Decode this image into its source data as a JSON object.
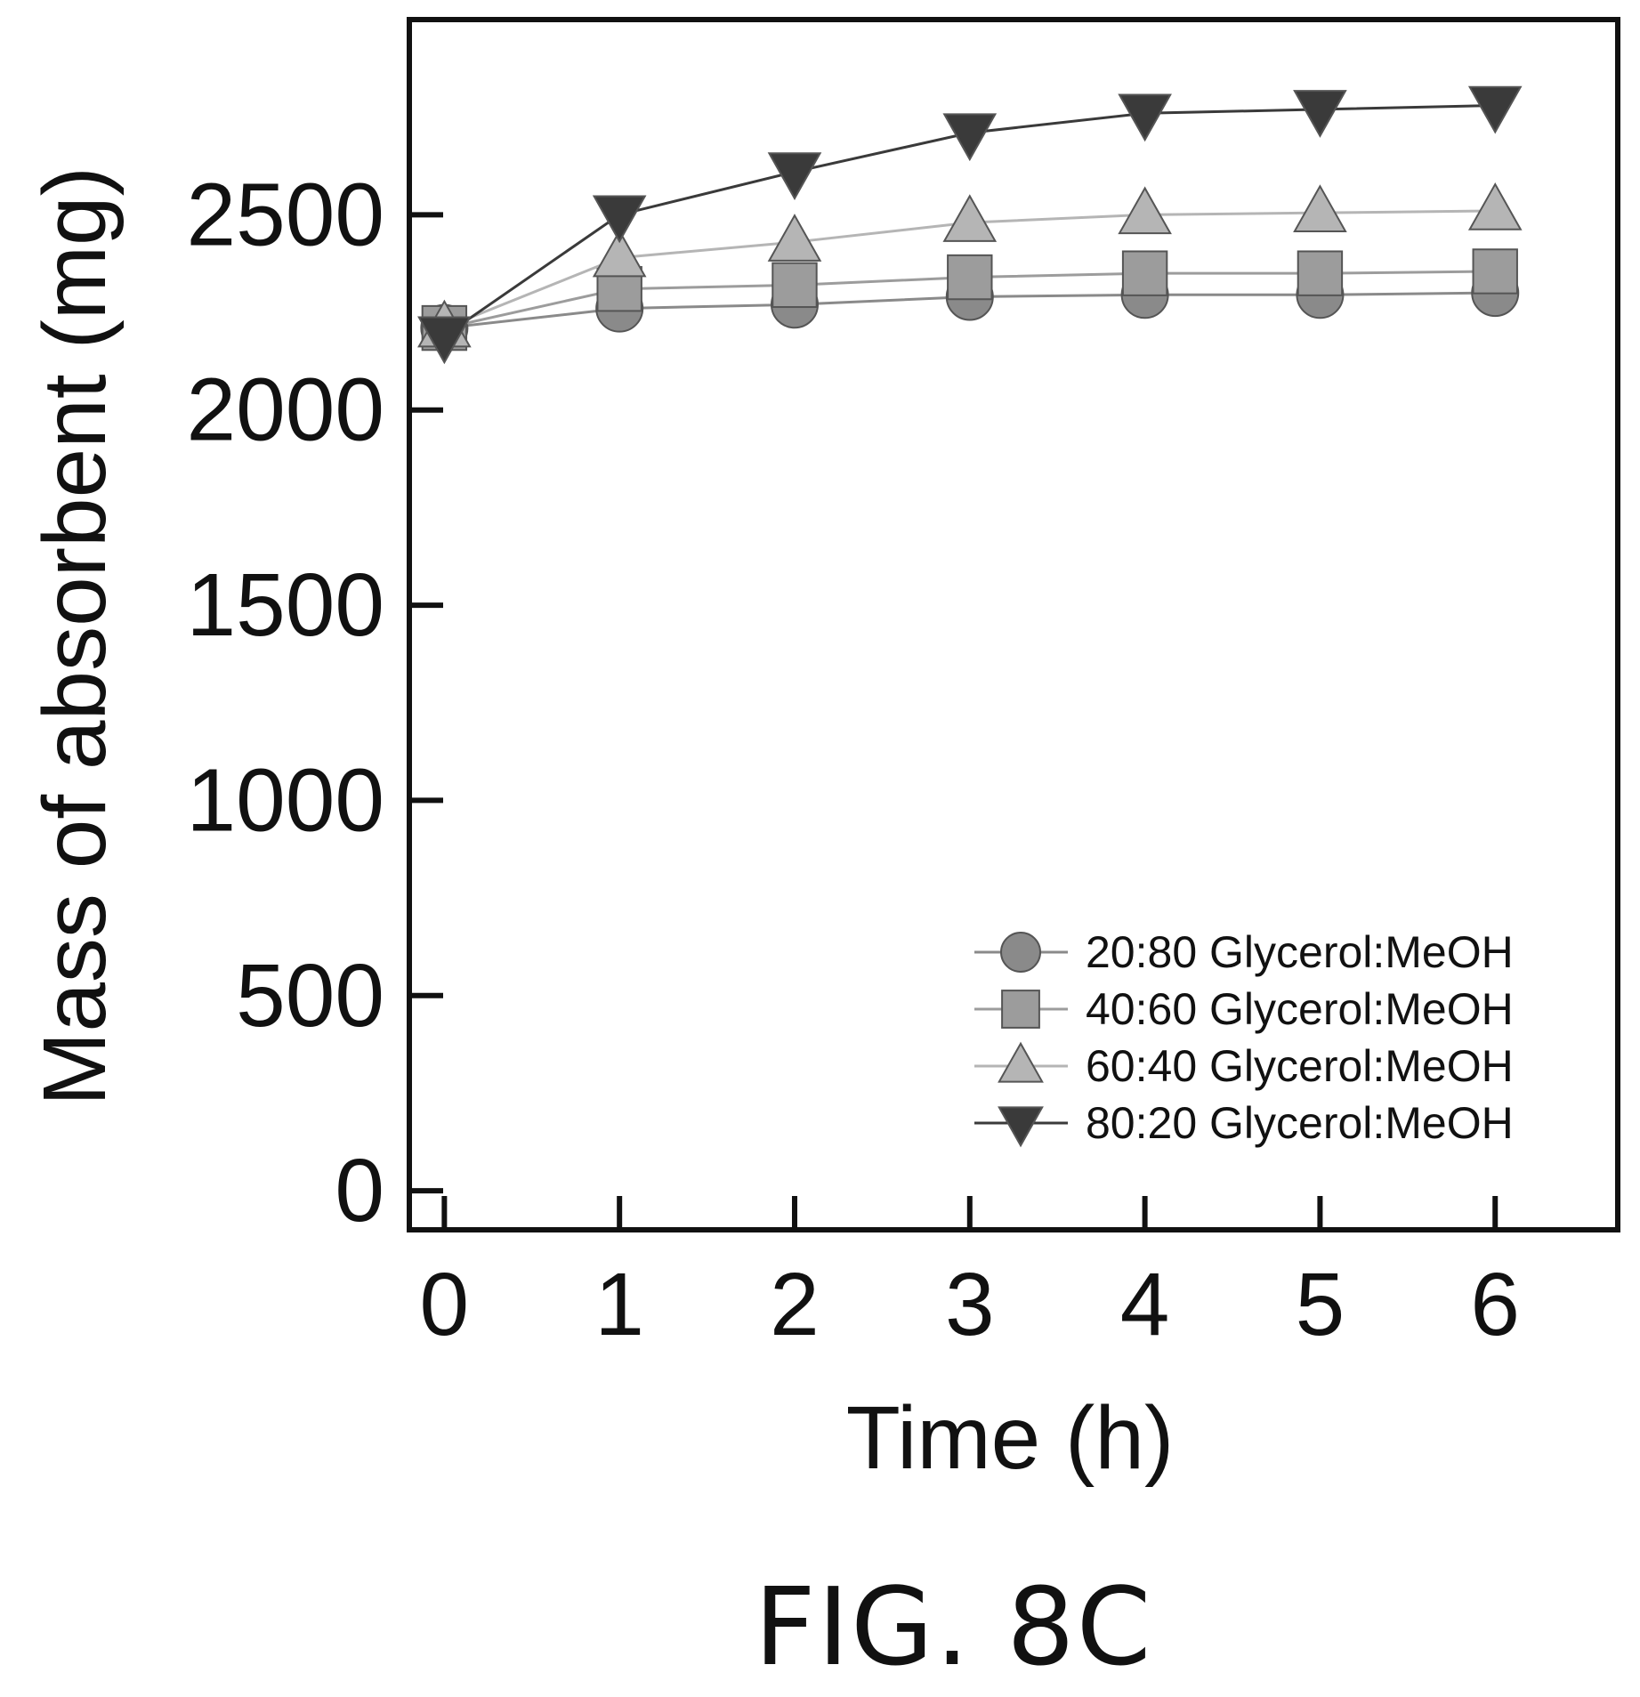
{
  "chart_data": {
    "type": "line",
    "title": "",
    "xlabel": "Time (h)",
    "ylabel": "Mass of absorbent (mg)",
    "x": [
      0,
      1,
      2,
      3,
      4,
      5,
      6
    ],
    "xticks": [
      "0",
      "1",
      "2",
      "3",
      "4",
      "5",
      "6"
    ],
    "yticks": [
      "0",
      "500",
      "1000",
      "1500",
      "2000",
      "2500"
    ],
    "xlim": [
      -0.2,
      6.7
    ],
    "ylim": [
      -100,
      3000
    ],
    "grid": false,
    "legend_position": "bottom-right",
    "series": [
      {
        "name": "20:80 Glycerol:MeOH",
        "marker": "circle",
        "color": "#8a8a8a",
        "values": [
          2210,
          2260,
          2270,
          2290,
          2295,
          2295,
          2300
        ]
      },
      {
        "name": "40:60 Glycerol:MeOH",
        "marker": "square",
        "color": "#9c9c9c",
        "values": [
          2210,
          2310,
          2320,
          2340,
          2350,
          2350,
          2355
        ]
      },
      {
        "name": "60:40 Glycerol:MeOH",
        "marker": "triangle-up",
        "color": "#b5b5b5",
        "values": [
          2210,
          2390,
          2430,
          2480,
          2500,
          2505,
          2510
        ]
      },
      {
        "name": "80:20 Glycerol:MeOH",
        "marker": "triangle-down",
        "color": "#3a3a3a",
        "values": [
          2190,
          2500,
          2610,
          2710,
          2760,
          2770,
          2780
        ]
      }
    ]
  },
  "figure_caption": "FIG. 8C"
}
